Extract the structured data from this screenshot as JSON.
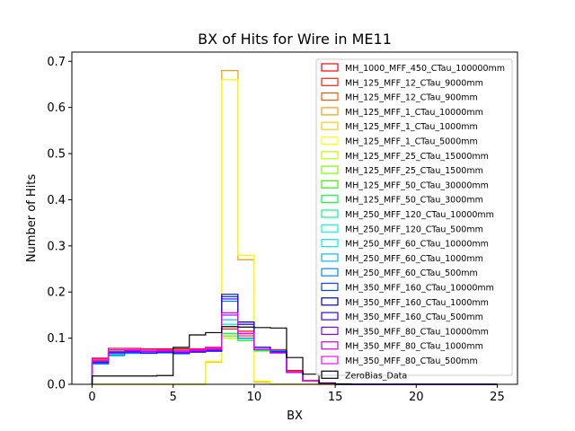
{
  "chart_data": {
    "type": "line",
    "style": "step-histogram",
    "title": "BX of Hits for Wire in ME11",
    "xlabel": "BX",
    "ylabel": "Number of Hits",
    "xlim": [
      -1.25,
      26.25
    ],
    "ylim": [
      0,
      0.72
    ],
    "x_ticks": [
      0,
      5,
      10,
      15,
      20,
      25
    ],
    "y_ticks": [
      0.0,
      0.1,
      0.2,
      0.3,
      0.4,
      0.5,
      0.6,
      0.7
    ],
    "legend_position": "upper-right",
    "grid": false,
    "bin_edges": [
      0,
      1,
      2,
      3,
      4,
      5,
      6,
      7,
      8,
      9,
      10,
      11,
      12,
      13,
      14,
      15,
      16,
      17,
      18,
      19,
      20,
      21,
      22,
      23,
      24,
      25
    ],
    "series": [
      {
        "name": "MH_1000_MFF_450_CTau_100000mm",
        "color": "#ff0000",
        "values": [
          0.055,
          0.078,
          0.078,
          0.077,
          0.077,
          0.077,
          0.077,
          0.08,
          0.12,
          0.115,
          0.08,
          0.075,
          0.03,
          0.008,
          0.002,
          0,
          0,
          0,
          0,
          0,
          0,
          0,
          0,
          0,
          0
        ]
      },
      {
        "name": "MH_125_MFF_12_CTau_9000mm",
        "color": "#ff2200",
        "values": [
          0.052,
          0.074,
          0.075,
          0.074,
          0.075,
          0.074,
          0.075,
          0.078,
          0.11,
          0.105,
          0.075,
          0.07,
          0.028,
          0.008,
          0.002,
          0,
          0,
          0,
          0,
          0,
          0,
          0,
          0,
          0,
          0
        ]
      },
      {
        "name": "MH_125_MFF_12_CTau_900mm",
        "color": "#ff5500",
        "values": [
          0.05,
          0.073,
          0.074,
          0.073,
          0.074,
          0.073,
          0.074,
          0.077,
          0.105,
          0.1,
          0.074,
          0.07,
          0.028,
          0.008,
          0.002,
          0,
          0,
          0,
          0,
          0,
          0,
          0,
          0,
          0,
          0
        ]
      },
      {
        "name": "MH_125_MFF_1_CTau_10000mm",
        "color": "#ff9900",
        "values": [
          0,
          0,
          0,
          0,
          0,
          0,
          0,
          0.048,
          0.68,
          0.27,
          0.005,
          0,
          0,
          0,
          0,
          0,
          0,
          0,
          0,
          0,
          0,
          0,
          0,
          0,
          0
        ]
      },
      {
        "name": "MH_125_MFF_1_CTau_1000mm",
        "color": "#ffcc00",
        "values": [
          0,
          0,
          0,
          0,
          0,
          0,
          0,
          0.048,
          0.66,
          0.28,
          0.006,
          0,
          0,
          0,
          0,
          0,
          0,
          0,
          0,
          0,
          0,
          0,
          0,
          0,
          0
        ]
      },
      {
        "name": "MH_125_MFF_1_CTau_5000mm",
        "color": "#ffff00",
        "values": [
          0,
          0,
          0,
          0,
          0,
          0,
          0,
          0.05,
          0.66,
          0.28,
          0.007,
          0,
          0,
          0,
          0,
          0,
          0,
          0,
          0,
          0,
          0,
          0,
          0,
          0,
          0
        ]
      },
      {
        "name": "MH_125_MFF_25_CTau_15000mm",
        "color": "#bbff00",
        "values": [
          0.05,
          0.072,
          0.073,
          0.073,
          0.073,
          0.072,
          0.073,
          0.075,
          0.1,
          0.095,
          0.072,
          0.068,
          0.027,
          0.007,
          0.002,
          0,
          0,
          0,
          0,
          0,
          0,
          0,
          0,
          0,
          0
        ]
      },
      {
        "name": "MH_125_MFF_25_CTau_1500mm",
        "color": "#77ff00",
        "values": [
          0.05,
          0.073,
          0.073,
          0.072,
          0.073,
          0.072,
          0.073,
          0.075,
          0.105,
          0.095,
          0.073,
          0.068,
          0.027,
          0.007,
          0.002,
          0,
          0,
          0,
          0,
          0,
          0,
          0,
          0,
          0,
          0
        ]
      },
      {
        "name": "MH_125_MFF_50_CTau_30000mm",
        "color": "#33ff00",
        "values": [
          0.05,
          0.072,
          0.073,
          0.072,
          0.073,
          0.072,
          0.073,
          0.075,
          0.105,
          0.095,
          0.073,
          0.069,
          0.027,
          0.007,
          0.002,
          0,
          0,
          0,
          0,
          0,
          0,
          0,
          0,
          0,
          0
        ]
      },
      {
        "name": "MH_125_MFF_50_CTau_3000mm",
        "color": "#00ff44",
        "values": [
          0.05,
          0.072,
          0.073,
          0.072,
          0.073,
          0.072,
          0.073,
          0.075,
          0.11,
          0.095,
          0.073,
          0.069,
          0.027,
          0.007,
          0.002,
          0,
          0,
          0,
          0,
          0,
          0,
          0,
          0,
          0,
          0
        ]
      },
      {
        "name": "MH_250_MFF_120_CTau_10000mm",
        "color": "#00ff88",
        "values": [
          0.048,
          0.07,
          0.072,
          0.071,
          0.072,
          0.07,
          0.072,
          0.074,
          0.13,
          0.1,
          0.075,
          0.07,
          0.027,
          0.007,
          0.002,
          0,
          0,
          0,
          0,
          0,
          0,
          0,
          0,
          0,
          0
        ]
      },
      {
        "name": "MH_250_MFF_120_CTau_500mm",
        "color": "#00ffcc",
        "values": [
          0.048,
          0.07,
          0.072,
          0.071,
          0.072,
          0.07,
          0.072,
          0.075,
          0.14,
          0.1,
          0.075,
          0.07,
          0.027,
          0.007,
          0.002,
          0,
          0,
          0,
          0,
          0,
          0,
          0,
          0,
          0,
          0
        ]
      },
      {
        "name": "MH_250_MFF_60_CTau_10000mm",
        "color": "#00eeff",
        "values": [
          0.045,
          0.065,
          0.068,
          0.068,
          0.068,
          0.067,
          0.07,
          0.072,
          0.13,
          0.1,
          0.075,
          0.072,
          0.027,
          0.007,
          0.002,
          0,
          0,
          0,
          0,
          0,
          0,
          0,
          0,
          0,
          0
        ]
      },
      {
        "name": "MH_250_MFF_60_CTau_1000mm",
        "color": "#00bbff",
        "values": [
          0.044,
          0.062,
          0.067,
          0.067,
          0.068,
          0.066,
          0.07,
          0.073,
          0.14,
          0.1,
          0.076,
          0.073,
          0.027,
          0.007,
          0.002,
          0,
          0,
          0,
          0,
          0,
          0,
          0,
          0,
          0,
          0
        ]
      },
      {
        "name": "MH_250_MFF_60_CTau_500mm",
        "color": "#0088ff",
        "values": [
          0.044,
          0.063,
          0.067,
          0.067,
          0.068,
          0.066,
          0.07,
          0.073,
          0.18,
          0.1,
          0.076,
          0.072,
          0.027,
          0.007,
          0.002,
          0,
          0,
          0,
          0,
          0,
          0,
          0,
          0,
          0,
          0
        ]
      },
      {
        "name": "MH_350_MFF_160_CTau_10000mm",
        "color": "#0044ff",
        "values": [
          0.047,
          0.068,
          0.07,
          0.068,
          0.07,
          0.068,
          0.07,
          0.072,
          0.19,
          0.13,
          0.08,
          0.07,
          0.026,
          0.007,
          0.002,
          0,
          0,
          0,
          0,
          0,
          0,
          0,
          0,
          0,
          0
        ]
      },
      {
        "name": "MH_350_MFF_160_CTau_1000mm",
        "color": "#0000cc",
        "values": [
          0.047,
          0.068,
          0.07,
          0.068,
          0.07,
          0.068,
          0.07,
          0.072,
          0.195,
          0.135,
          0.08,
          0.07,
          0.026,
          0.007,
          0.002,
          0,
          0,
          0,
          0,
          0,
          0,
          0,
          0,
          0,
          0
        ]
      },
      {
        "name": "MH_350_MFF_160_CTau_500mm",
        "color": "#3300ff",
        "values": [
          0.047,
          0.068,
          0.07,
          0.068,
          0.07,
          0.068,
          0.07,
          0.072,
          0.185,
          0.13,
          0.08,
          0.07,
          0.026,
          0.007,
          0.002,
          0,
          0,
          0,
          0,
          0,
          0,
          0,
          0,
          0,
          0
        ]
      },
      {
        "name": "MH_350_MFF_80_CTau_10000mm",
        "color": "#8800ff",
        "values": [
          0.05,
          0.07,
          0.072,
          0.071,
          0.072,
          0.07,
          0.072,
          0.075,
          0.15,
          0.11,
          0.075,
          0.068,
          0.027,
          0.007,
          0.002,
          0,
          0,
          0,
          0,
          0,
          0,
          0,
          0,
          0,
          0
        ]
      },
      {
        "name": "MH_350_MFF_80_CTau_1000mm",
        "color": "#cc00ff",
        "values": [
          0.05,
          0.071,
          0.073,
          0.071,
          0.072,
          0.07,
          0.073,
          0.076,
          0.155,
          0.11,
          0.075,
          0.068,
          0.027,
          0.007,
          0.002,
          0,
          0,
          0,
          0,
          0,
          0,
          0,
          0,
          0,
          0
        ]
      },
      {
        "name": "MH_350_MFF_80_CTau_500mm",
        "color": "#ff00ff",
        "values": [
          0.057,
          0.075,
          0.075,
          0.074,
          0.074,
          0.073,
          0.075,
          0.08,
          0.155,
          0.11,
          0.075,
          0.068,
          0.027,
          0.007,
          0.002,
          0,
          0,
          0,
          0,
          0,
          0,
          0,
          0,
          0,
          0
        ]
      },
      {
        "name": "ZeroBias_Data",
        "color": "#000000",
        "values": [
          0.018,
          0.018,
          0.018,
          0.018,
          0.019,
          0.08,
          0.107,
          0.112,
          0.125,
          0.124,
          0.123,
          0.122,
          0.058,
          0.022,
          0.003,
          0.001,
          0,
          0,
          0,
          0,
          0,
          0,
          0,
          0,
          0
        ]
      }
    ]
  }
}
